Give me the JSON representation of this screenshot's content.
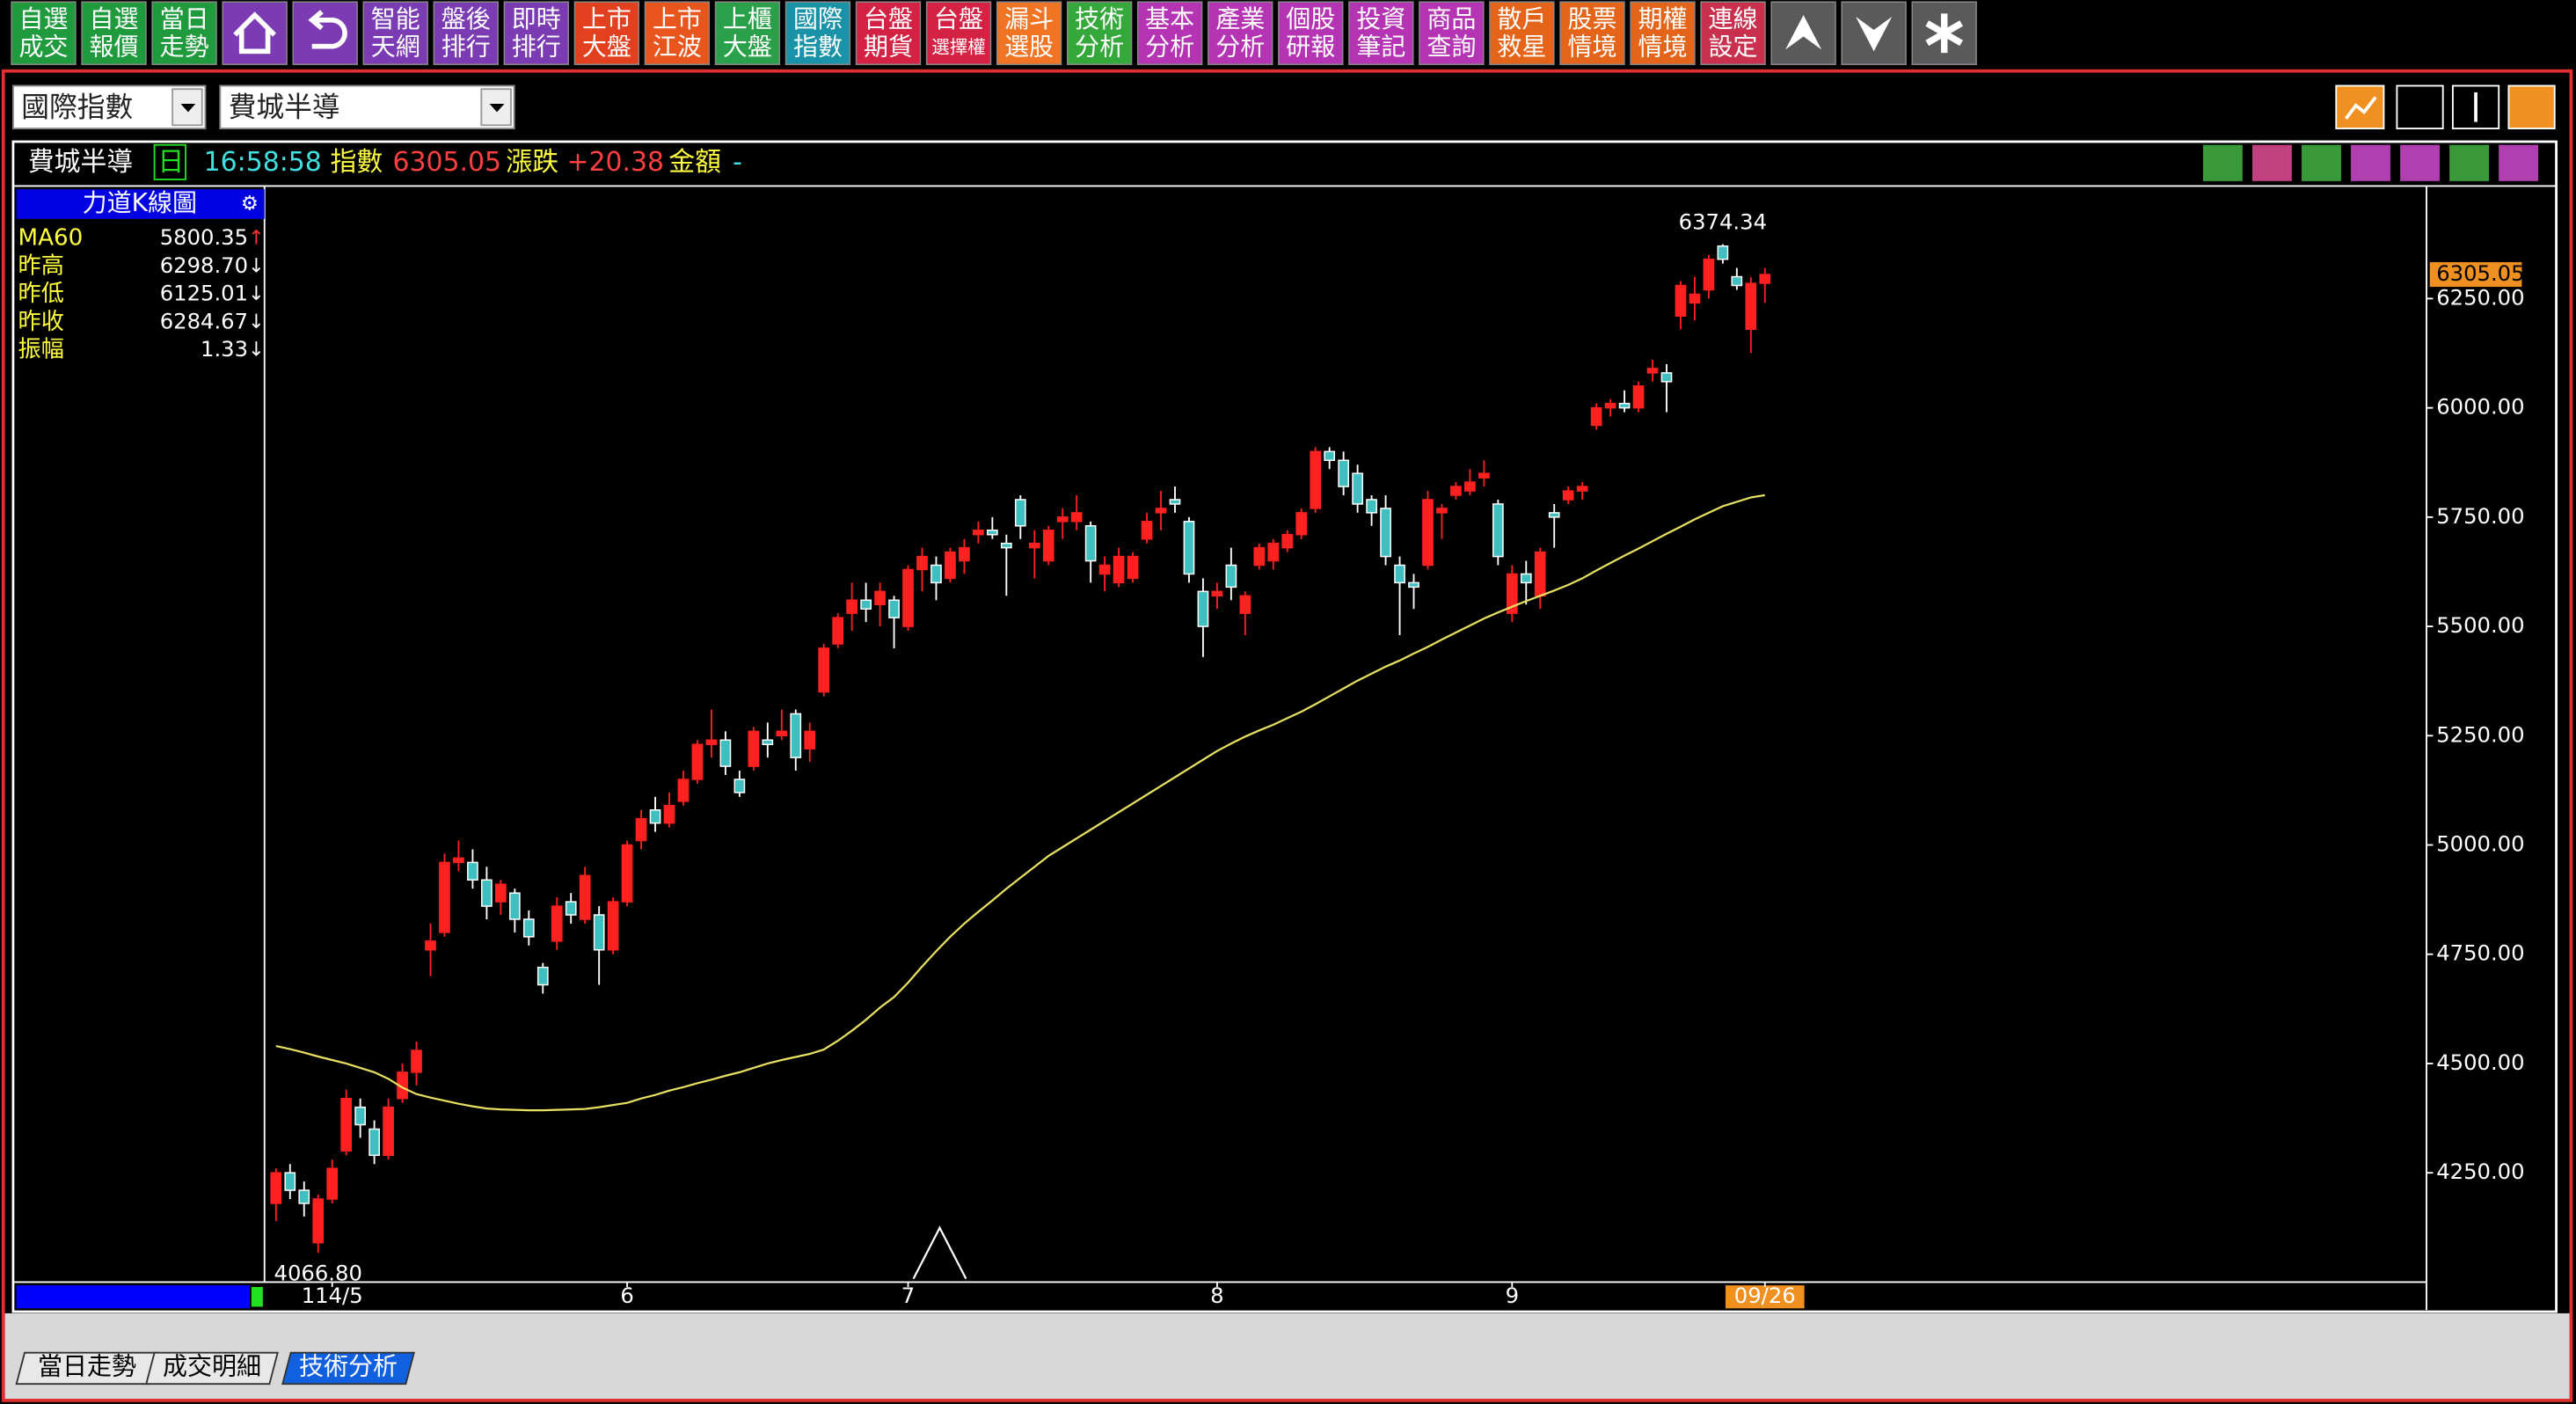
{
  "toolbar": [
    {
      "lines": [
        "自選",
        "成交"
      ],
      "color": "#1f9a3c"
    },
    {
      "lines": [
        "自選",
        "報價"
      ],
      "color": "#1f9a3c"
    },
    {
      "lines": [
        "當日",
        "走勢"
      ],
      "color": "#1f9a3c"
    },
    {
      "icon": "home",
      "color": "#7b3bb3"
    },
    {
      "icon": "back",
      "color": "#7b3bb3"
    },
    {
      "lines": [
        "智能",
        "天網"
      ],
      "color": "#7b3bb3"
    },
    {
      "lines": [
        "盤後",
        "排行"
      ],
      "color": "#7b3bb3"
    },
    {
      "lines": [
        "即時",
        "排行"
      ],
      "color": "#7b3bb3"
    },
    {
      "lines": [
        "上市",
        "大盤"
      ],
      "color": "#e2401e"
    },
    {
      "lines": [
        "上市",
        "江波"
      ],
      "color": "#e8561e"
    },
    {
      "lines": [
        "上櫃",
        "大盤"
      ],
      "color": "#2aa04a"
    },
    {
      "lines": [
        "國際",
        "指數"
      ],
      "color": "#1a93a8"
    },
    {
      "lines": [
        "台盤",
        "期貨"
      ],
      "color": "#d42244"
    },
    {
      "lines": [
        "台盤",
        "選擇權"
      ],
      "color": "#d42244"
    },
    {
      "lines": [
        "漏斗",
        "選股"
      ],
      "color": "#f07424"
    },
    {
      "lines": [
        "技術",
        "分析"
      ],
      "color": "#34a83a"
    },
    {
      "lines": [
        "基本",
        "分析"
      ],
      "color": "#b434b4"
    },
    {
      "lines": [
        "產業",
        "分析"
      ],
      "color": "#b434b4"
    },
    {
      "lines": [
        "個股",
        "研報"
      ],
      "color": "#b434b4"
    },
    {
      "lines": [
        "投資",
        "筆記"
      ],
      "color": "#b434b4"
    },
    {
      "lines": [
        "商品",
        "查詢"
      ],
      "color": "#b434b4"
    },
    {
      "lines": [
        "散戶",
        "救星"
      ],
      "color": "#e4641a"
    },
    {
      "lines": [
        "股票",
        "情境"
      ],
      "color": "#e4641a"
    },
    {
      "lines": [
        "期權",
        "情境"
      ],
      "color": "#e4641a"
    },
    {
      "lines": [
        "連線",
        "設定"
      ],
      "color": "#c8304e"
    },
    {
      "icon": "up",
      "color": "#5a5a5a"
    },
    {
      "icon": "down",
      "color": "#5a5a5a"
    },
    {
      "icon": "star",
      "color": "#5a5a5a"
    }
  ],
  "selectors": [
    "國際指數",
    "費城半導"
  ],
  "info": {
    "name": "費城半導",
    "period": "日",
    "time": "16:58:58",
    "index_label": "指數",
    "index": "6305.05",
    "change_label": "漲跌",
    "change": "+20.38",
    "amount_label": "金額",
    "amount": "-"
  },
  "panel": {
    "title": "力道K線圖",
    "rows": [
      {
        "name": "MA60",
        "value": "5800.35",
        "arrow": "↑"
      },
      {
        "name": "昨高",
        "value": "6298.70",
        "arrow": "↓"
      },
      {
        "name": "昨低",
        "value": "6125.01",
        "arrow": "↓"
      },
      {
        "name": "昨收",
        "value": "6284.67",
        "arrow": "↓"
      },
      {
        "name": "振幅",
        "value": "1.33",
        "arrow": "↓"
      }
    ]
  },
  "tabs": [
    "當日走勢",
    "成交明細",
    "技術分析"
  ],
  "chart_data": {
    "type": "candlestick",
    "ylim": [
      4000,
      6500
    ],
    "yticks": [
      {
        "value": 4250,
        "label": "4250.00"
      },
      {
        "value": 4500,
        "label": "4500.00"
      },
      {
        "value": 4750,
        "label": "4750.00"
      },
      {
        "value": 5000,
        "label": "5000.00"
      },
      {
        "value": 5250,
        "label": "5250.00"
      },
      {
        "value": 5500,
        "label": "5500.00"
      },
      {
        "value": 5750,
        "label": "5750.00"
      },
      {
        "value": 6000,
        "label": "6000.00"
      },
      {
        "value": 6250,
        "label": "6250.00"
      }
    ],
    "xticks": [
      {
        "value": 4,
        "label": "114/5"
      },
      {
        "value": 25,
        "label": "6"
      },
      {
        "value": 45,
        "label": "7"
      },
      {
        "value": 67,
        "label": "8"
      },
      {
        "value": 88,
        "label": "9"
      },
      {
        "value": 106,
        "label": "09/26"
      }
    ],
    "up_color": "#ff2020",
    "down_color": "#3fbfbf",
    "ma_color": "#e8e060",
    "high_label": "6374.34",
    "low_label": "4066.80",
    "last_label": "6305.05",
    "ohlc": [
      [
        4180,
        4260,
        4140,
        4250
      ],
      [
        4250,
        4270,
        4190,
        4210
      ],
      [
        4210,
        4230,
        4150,
        4180
      ],
      [
        4090,
        4200,
        4066.8,
        4190
      ],
      [
        4190,
        4280,
        4180,
        4260
      ],
      [
        4300,
        4440,
        4290,
        4420
      ],
      [
        4400,
        4420,
        4330,
        4360
      ],
      [
        4350,
        4370,
        4270,
        4290
      ],
      [
        4290,
        4420,
        4280,
        4400
      ],
      [
        4420,
        4500,
        4410,
        4480
      ],
      [
        4480,
        4550,
        4450,
        4530
      ],
      [
        4760,
        4820,
        4700,
        4780
      ],
      [
        4800,
        4980,
        4790,
        4960
      ],
      [
        4960,
        5010,
        4940,
        4970
      ],
      [
        4960,
        4990,
        4900,
        4920
      ],
      [
        4920,
        4950,
        4830,
        4860
      ],
      [
        4870,
        4920,
        4840,
        4910
      ],
      [
        4890,
        4900,
        4800,
        4830
      ],
      [
        4830,
        4850,
        4770,
        4790
      ],
      [
        4720,
        4730,
        4660,
        4680
      ],
      [
        4780,
        4880,
        4760,
        4860
      ],
      [
        4870,
        4890,
        4820,
        4840
      ],
      [
        4830,
        4950,
        4820,
        4930
      ],
      [
        4840,
        4860,
        4680,
        4760
      ],
      [
        4760,
        4880,
        4750,
        4870
      ],
      [
        4870,
        5010,
        4860,
        5000
      ],
      [
        5010,
        5080,
        4990,
        5060
      ],
      [
        5080,
        5110,
        5030,
        5050
      ],
      [
        5050,
        5120,
        5040,
        5090
      ],
      [
        5100,
        5170,
        5090,
        5150
      ],
      [
        5150,
        5240,
        5140,
        5230
      ],
      [
        5230,
        5310,
        5200,
        5240
      ],
      [
        5240,
        5260,
        5160,
        5180
      ],
      [
        5150,
        5170,
        5110,
        5120
      ],
      [
        5180,
        5270,
        5170,
        5260
      ],
      [
        5240,
        5280,
        5200,
        5230
      ],
      [
        5250,
        5310,
        5240,
        5260
      ],
      [
        5300,
        5310,
        5170,
        5200
      ],
      [
        5220,
        5280,
        5190,
        5260
      ],
      [
        5350,
        5460,
        5340,
        5450
      ],
      [
        5460,
        5530,
        5450,
        5520
      ],
      [
        5530,
        5600,
        5490,
        5560
      ],
      [
        5560,
        5600,
        5510,
        5540
      ],
      [
        5550,
        5600,
        5500,
        5580
      ],
      [
        5560,
        5570,
        5450,
        5520
      ],
      [
        5500,
        5640,
        5490,
        5630
      ],
      [
        5630,
        5680,
        5580,
        5660
      ],
      [
        5640,
        5660,
        5560,
        5600
      ],
      [
        5610,
        5680,
        5600,
        5670
      ],
      [
        5650,
        5700,
        5620,
        5680
      ],
      [
        5710,
        5740,
        5690,
        5720
      ],
      [
        5720,
        5750,
        5700,
        5710
      ],
      [
        5690,
        5710,
        5570,
        5680
      ],
      [
        5790,
        5800,
        5700,
        5730
      ],
      [
        5680,
        5720,
        5610,
        5690
      ],
      [
        5650,
        5730,
        5640,
        5720
      ],
      [
        5740,
        5770,
        5700,
        5750
      ],
      [
        5740,
        5800,
        5720,
        5760
      ],
      [
        5730,
        5740,
        5600,
        5650
      ],
      [
        5620,
        5660,
        5580,
        5640
      ],
      [
        5600,
        5680,
        5590,
        5660
      ],
      [
        5610,
        5670,
        5600,
        5660
      ],
      [
        5700,
        5760,
        5690,
        5740
      ],
      [
        5760,
        5810,
        5720,
        5770
      ],
      [
        5790,
        5820,
        5760,
        5780
      ],
      [
        5740,
        5750,
        5600,
        5620
      ],
      [
        5580,
        5610,
        5430,
        5500
      ],
      [
        5570,
        5600,
        5540,
        5580
      ],
      [
        5640,
        5680,
        5560,
        5590
      ],
      [
        5530,
        5580,
        5480,
        5570
      ],
      [
        5640,
        5690,
        5630,
        5680
      ],
      [
        5650,
        5700,
        5630,
        5690
      ],
      [
        5680,
        5720,
        5670,
        5710
      ],
      [
        5710,
        5770,
        5700,
        5760
      ],
      [
        5770,
        5910,
        5760,
        5900
      ],
      [
        5900,
        5910,
        5860,
        5880
      ],
      [
        5880,
        5900,
        5800,
        5820
      ],
      [
        5850,
        5870,
        5760,
        5780
      ],
      [
        5790,
        5800,
        5730,
        5760
      ],
      [
        5770,
        5800,
        5640,
        5660
      ],
      [
        5640,
        5660,
        5480,
        5600
      ],
      [
        5600,
        5620,
        5540,
        5590
      ],
      [
        5640,
        5810,
        5630,
        5790
      ],
      [
        5760,
        5780,
        5700,
        5770
      ],
      [
        5800,
        5830,
        5790,
        5820
      ],
      [
        5810,
        5860,
        5800,
        5830
      ],
      [
        5840,
        5880,
        5820,
        5850
      ],
      [
        5780,
        5790,
        5640,
        5660
      ],
      [
        5530,
        5640,
        5510,
        5620
      ],
      [
        5620,
        5650,
        5550,
        5600
      ],
      [
        5570,
        5680,
        5540,
        5670
      ],
      [
        5760,
        5780,
        5680,
        5750
      ],
      [
        5790,
        5820,
        5780,
        5810
      ],
      [
        5810,
        5830,
        5790,
        5820
      ],
      [
        5960,
        6010,
        5950,
        6000
      ],
      [
        6000,
        6020,
        5980,
        6010
      ],
      [
        6010,
        6040,
        5990,
        6000
      ],
      [
        6000,
        6060,
        5990,
        6050
      ],
      [
        6080,
        6110,
        6060,
        6090
      ],
      [
        6080,
        6100,
        5990,
        6060
      ],
      [
        6210,
        6290,
        6180,
        6280
      ],
      [
        6240,
        6300,
        6200,
        6260
      ],
      [
        6270,
        6350,
        6250,
        6340
      ],
      [
        6370,
        6374.34,
        6330,
        6340
      ],
      [
        6300,
        6320,
        6270,
        6280
      ],
      [
        6180,
        6298.7,
        6125.01,
        6284.67
      ],
      [
        6285,
        6320,
        6240,
        6305.05
      ]
    ],
    "ma60": [
      4540,
      4533,
      4525,
      4516,
      4508,
      4500,
      4490,
      4480,
      4465,
      4445,
      4430,
      4422,
      4415,
      4408,
      4402,
      4397,
      4395,
      4394,
      4393,
      4393,
      4394,
      4395,
      4396,
      4400,
      4405,
      4410,
      4420,
      4428,
      4438,
      4446,
      4455,
      4463,
      4472,
      4480,
      4490,
      4500,
      4508,
      4515,
      4522,
      4532,
      4552,
      4575,
      4600,
      4628,
      4652,
      4685,
      4722,
      4757,
      4790,
      4820,
      4847,
      4873,
      4900,
      4925,
      4950,
      4975,
      4995,
      5015,
      5035,
      5055,
      5075,
      5095,
      5115,
      5135,
      5155,
      5175,
      5195,
      5215,
      5232,
      5248,
      5262,
      5275,
      5290,
      5305,
      5322,
      5340,
      5358,
      5376,
      5392,
      5408,
      5422,
      5438,
      5453,
      5470,
      5486,
      5502,
      5518,
      5532,
      5545,
      5558,
      5570,
      5582,
      5595,
      5610,
      5628,
      5645,
      5662,
      5678,
      5695,
      5712,
      5728,
      5745,
      5760,
      5775,
      5785,
      5795,
      5800.35
    ]
  }
}
